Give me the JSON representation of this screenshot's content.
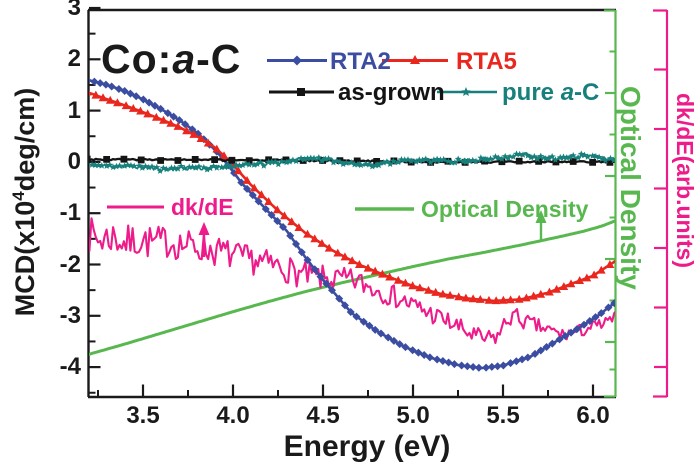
{
  "title": {
    "pre": "Co:",
    "italic": "a",
    "post": "-C"
  },
  "axes": {
    "left_label": {
      "pre": "MCD(x10",
      "sup": "4",
      "post": "deg/cm)"
    },
    "bottom_label": "Energy (eV)",
    "right_inner_label": "Optical Density",
    "right_outer_label": "dk/dE(arb.units)",
    "x_tick_labels": [
      "3.5",
      "4.0",
      "4.5",
      "5.0",
      "5.5",
      "6.0"
    ],
    "y_tick_labels": [
      "3",
      "2",
      "1",
      "0",
      "-1",
      "-2",
      "-3",
      "-4"
    ]
  },
  "legend": {
    "rta2": "RTA2",
    "rta5": "RTA5",
    "as_grown": "as-grown",
    "pure_ac": {
      "pre": "pure ",
      "italic": "a",
      "post": "-C"
    },
    "dkde": "dk/dE",
    "optical_density": "Optical Density"
  },
  "colors": {
    "blue": "#3b4da0",
    "red": "#e9271f",
    "black": "#141414",
    "teal": "#17807c",
    "pink": "#ee1b8a",
    "green": "#58b84f"
  },
  "chart_data": {
    "type": "line",
    "title": "Co:a-C",
    "xlabel": "Energy (eV)",
    "ylabel": "MCD(x10^4 deg/cm)",
    "y2label": "Optical Density",
    "y3label": "dk/dE(arb.units)",
    "xlim": [
      3.19,
      6.13
    ],
    "ylim": [
      -4.58,
      3.04
    ],
    "xticks": [
      3.5,
      4.0,
      4.5,
      5.0,
      5.5,
      6.0
    ],
    "yticks": [
      3,
      2,
      1,
      0,
      -1,
      -2,
      -3,
      -4
    ],
    "grid": false,
    "legend_position": "inside-top",
    "series": [
      {
        "name": "Optical Density",
        "axis": "right-arb-units",
        "color": "#58b84f",
        "width": 3,
        "points": [
          [
            3.19,
            -3.76
          ],
          [
            3.4,
            -3.55
          ],
          [
            3.6,
            -3.34
          ],
          [
            3.8,
            -3.13
          ],
          [
            4.0,
            -2.92
          ],
          [
            4.2,
            -2.72
          ],
          [
            4.4,
            -2.53
          ],
          [
            4.6,
            -2.36
          ],
          [
            4.8,
            -2.2
          ],
          [
            5.0,
            -2.04
          ],
          [
            5.2,
            -1.89
          ],
          [
            5.4,
            -1.76
          ],
          [
            5.6,
            -1.62
          ],
          [
            5.8,
            -1.47
          ],
          [
            5.95,
            -1.35
          ],
          [
            6.05,
            -1.25
          ],
          [
            6.13,
            -1.14
          ]
        ]
      },
      {
        "name": "dk/dE",
        "axis": "right-arb-units",
        "color": "#ee1b8a",
        "width": 2.1,
        "seed": 7,
        "step": 0.012,
        "noise": [
          0.36,
          0.12
        ],
        "points": [
          [
            3.19,
            -1.4
          ],
          [
            3.26,
            -1.52
          ],
          [
            3.33,
            -1.45
          ],
          [
            3.4,
            -1.58
          ],
          [
            3.48,
            -1.52
          ],
          [
            3.56,
            -1.58
          ],
          [
            3.64,
            -1.55
          ],
          [
            3.72,
            -1.62
          ],
          [
            3.8,
            -1.65
          ],
          [
            3.88,
            -1.72
          ],
          [
            3.96,
            -1.78
          ],
          [
            4.04,
            -1.88
          ],
          [
            4.12,
            -1.92
          ],
          [
            4.2,
            -2.0
          ],
          [
            4.28,
            -2.06
          ],
          [
            4.36,
            -2.18
          ],
          [
            4.44,
            -2.24
          ],
          [
            4.52,
            -2.28
          ],
          [
            4.6,
            -2.3
          ],
          [
            4.68,
            -2.32
          ],
          [
            4.76,
            -2.44
          ],
          [
            4.84,
            -2.54
          ],
          [
            4.92,
            -2.66
          ],
          [
            5.0,
            -2.8
          ],
          [
            5.08,
            -2.93
          ],
          [
            5.16,
            -3.06
          ],
          [
            5.24,
            -3.2
          ],
          [
            5.32,
            -3.36
          ],
          [
            5.4,
            -3.47
          ],
          [
            5.47,
            -3.4
          ],
          [
            5.52,
            -3.1
          ],
          [
            5.56,
            -2.98
          ],
          [
            5.61,
            -3.1
          ],
          [
            5.67,
            -3.18
          ],
          [
            5.75,
            -3.28
          ],
          [
            5.83,
            -3.37
          ],
          [
            5.91,
            -3.32
          ],
          [
            5.99,
            -3.22
          ],
          [
            6.06,
            -3.17
          ],
          [
            6.13,
            -3.02
          ]
        ]
      },
      {
        "name": "RTA2",
        "color": "#3b4da0",
        "width": 2.6,
        "marker": "diamond",
        "marker_step": 0.034,
        "marker_size": 4,
        "points": [
          [
            3.19,
            1.6
          ],
          [
            3.3,
            1.5
          ],
          [
            3.4,
            1.38
          ],
          [
            3.5,
            1.22
          ],
          [
            3.6,
            1.03
          ],
          [
            3.7,
            0.82
          ],
          [
            3.8,
            0.57
          ],
          [
            3.91,
            0.2
          ],
          [
            3.97,
            -0.05
          ],
          [
            4.05,
            -0.42
          ],
          [
            4.15,
            -0.8
          ],
          [
            4.3,
            -1.35
          ],
          [
            4.4,
            -1.85
          ],
          [
            4.5,
            -2.3
          ],
          [
            4.66,
            -2.95
          ],
          [
            4.8,
            -3.3
          ],
          [
            4.95,
            -3.6
          ],
          [
            5.1,
            -3.82
          ],
          [
            5.25,
            -3.96
          ],
          [
            5.38,
            -4.02
          ],
          [
            5.5,
            -3.97
          ],
          [
            5.65,
            -3.8
          ],
          [
            5.78,
            -3.53
          ],
          [
            5.93,
            -3.22
          ],
          [
            6.03,
            -2.99
          ],
          [
            6.13,
            -2.72
          ]
        ]
      },
      {
        "name": "RTA5",
        "color": "#e9271f",
        "width": 2.6,
        "marker": "triangle",
        "marker_step": 0.042,
        "marker_size": 4.6,
        "points": [
          [
            3.19,
            1.36
          ],
          [
            3.3,
            1.22
          ],
          [
            3.4,
            1.1
          ],
          [
            3.5,
            0.97
          ],
          [
            3.6,
            0.83
          ],
          [
            3.7,
            0.68
          ],
          [
            3.8,
            0.5
          ],
          [
            3.9,
            0.28
          ],
          [
            3.98,
            0.02
          ],
          [
            4.1,
            -0.45
          ],
          [
            4.25,
            -0.95
          ],
          [
            4.4,
            -1.38
          ],
          [
            4.55,
            -1.72
          ],
          [
            4.7,
            -2.0
          ],
          [
            4.85,
            -2.22
          ],
          [
            5.0,
            -2.42
          ],
          [
            5.15,
            -2.57
          ],
          [
            5.3,
            -2.66
          ],
          [
            5.45,
            -2.71
          ],
          [
            5.6,
            -2.68
          ],
          [
            5.75,
            -2.55
          ],
          [
            5.9,
            -2.35
          ],
          [
            6.0,
            -2.22
          ],
          [
            6.13,
            -1.92
          ]
        ]
      },
      {
        "name": "as-grown",
        "color": "#141414",
        "width": 2.3,
        "seed": 3,
        "step": 0.012,
        "noise": [
          0.016,
          0.016
        ],
        "marker": "square",
        "marker_step": 0.1,
        "marker_size": 3.4,
        "points": [
          [
            3.19,
            0.05
          ],
          [
            4.3,
            0.03
          ],
          [
            5.2,
            0.0
          ],
          [
            6.13,
            0.0
          ]
        ]
      },
      {
        "name": "pure a-C",
        "color": "#17807c",
        "width": 1.7,
        "seed": 11,
        "step": 0.009,
        "noise": [
          0.04,
          0.04
        ],
        "marker": "star",
        "marker_step": 0.02,
        "marker_size": 3.6,
        "points": [
          [
            3.19,
            -0.06
          ],
          [
            3.35,
            -0.08
          ],
          [
            3.5,
            -0.1
          ],
          [
            3.62,
            -0.15
          ],
          [
            3.72,
            -0.12
          ],
          [
            3.85,
            -0.12
          ],
          [
            3.95,
            -0.1
          ],
          [
            4.05,
            -0.07
          ],
          [
            4.2,
            -0.04
          ],
          [
            4.35,
            0.04
          ],
          [
            4.45,
            0.07
          ],
          [
            4.55,
            0.03
          ],
          [
            4.65,
            -0.03
          ],
          [
            4.75,
            -0.06
          ],
          [
            4.85,
            -0.02
          ],
          [
            4.95,
            0.02
          ],
          [
            5.05,
            0.03
          ],
          [
            5.15,
            0.01
          ],
          [
            5.25,
            0.02
          ],
          [
            5.35,
            0.04
          ],
          [
            5.45,
            0.06
          ],
          [
            5.55,
            0.12
          ],
          [
            5.62,
            0.15
          ],
          [
            5.7,
            0.08
          ],
          [
            5.8,
            0.06
          ],
          [
            5.88,
            0.1
          ],
          [
            5.95,
            0.12
          ],
          [
            6.02,
            0.1
          ],
          [
            6.08,
            0.05
          ],
          [
            6.13,
            0.06
          ]
        ]
      }
    ]
  }
}
